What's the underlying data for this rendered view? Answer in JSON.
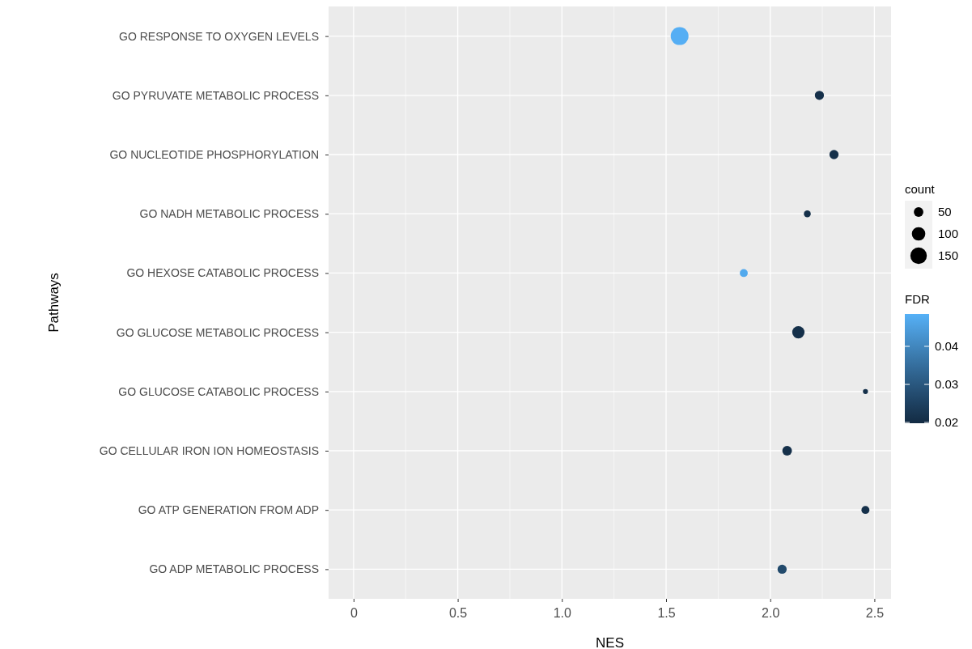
{
  "chart_data": {
    "type": "bubble",
    "xlabel": "NES",
    "ylabel": "Pathways",
    "legend_title": "count",
    "clabel": "FDR",
    "categories": [
      "GO RESPONSE TO OXYGEN LEVELS",
      "GO PYRUVATE METABOLIC PROCESS",
      "GO NUCLEOTIDE PHOSPHORYLATION",
      "GO NADH METABOLIC PROCESS",
      "GO HEXOSE CATABOLIC PROCESS",
      "GO GLUCOSE METABOLIC PROCESS",
      "GO GLUCOSE CATABOLIC PROCESS",
      "GO CELLULAR IRON ION HOMEOSTASIS",
      "GO ATP GENERATION FROM ADP",
      "GO ADP METABOLIC PROCESS"
    ],
    "values": [
      1.565,
      2.236,
      2.306,
      2.178,
      1.873,
      2.135,
      2.457,
      2.081,
      2.457,
      2.057
    ],
    "sizes": [
      175,
      46,
      46,
      26,
      35,
      84,
      14,
      51,
      35,
      46
    ],
    "size_legend": [
      50,
      100,
      150
    ],
    "cvalues": [
      0.048,
      0.021,
      0.021,
      0.021,
      0.047,
      0.021,
      0.021,
      0.021,
      0.021,
      0.027
    ],
    "clim": [
      0.0198,
      0.0485
    ],
    "cticks": [
      0.02,
      0.03,
      0.04
    ],
    "orientation": "horizontal",
    "xlim": [
      -0.12,
      2.58
    ],
    "xticks": [
      0,
      0.5,
      {
        "value": 1,
        "label": "1.0"
      },
      1.5,
      {
        "value": 2,
        "label": "2.0"
      },
      2.5
    ],
    "grid": true
  }
}
